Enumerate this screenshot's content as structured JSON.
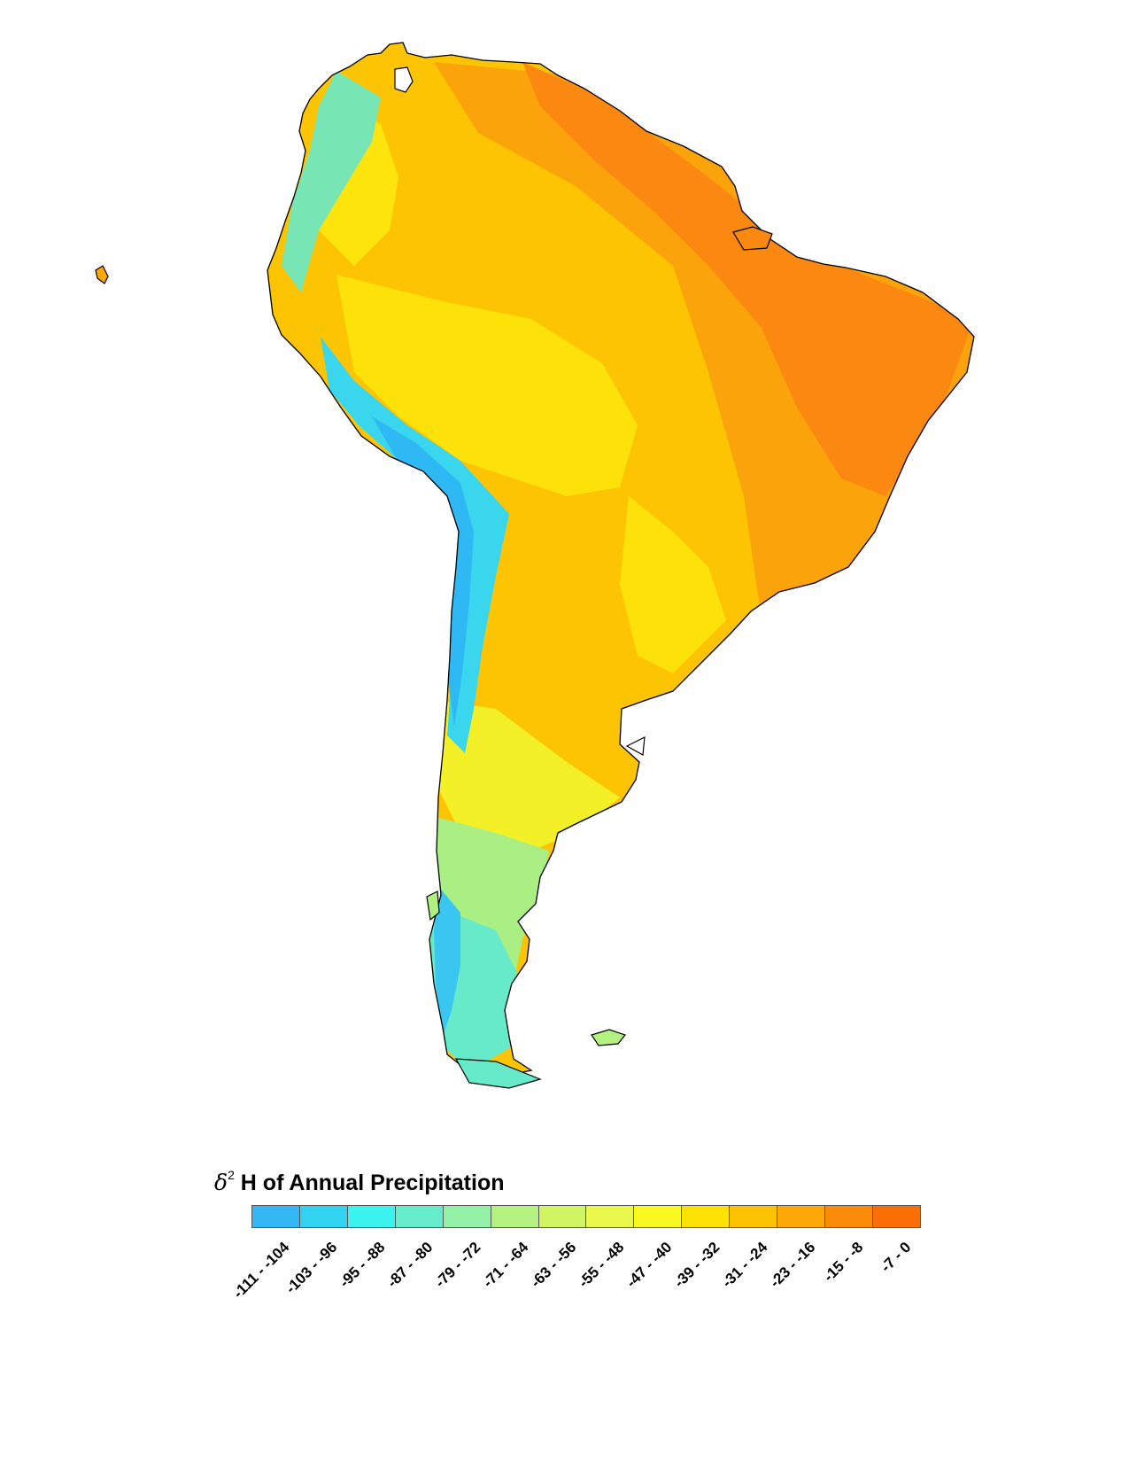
{
  "legend": {
    "title_symbol": "δ",
    "title_superscript": "2",
    "title_text": " H of Annual Precipitation",
    "classes": [
      {
        "label": "-111 - -104",
        "color": "#35b6f5"
      },
      {
        "label": "-103 - -96",
        "color": "#31d3f1"
      },
      {
        "label": "-95 - -88",
        "color": "#3af2ee"
      },
      {
        "label": "-87 - -80",
        "color": "#66ecca"
      },
      {
        "label": "-79 - -72",
        "color": "#93f2a8"
      },
      {
        "label": "-71 - -64",
        "color": "#b4f27f"
      },
      {
        "label": "-63 - -56",
        "color": "#d2f564"
      },
      {
        "label": "-55 - -48",
        "color": "#ecf74c"
      },
      {
        "label": "-47 - -40",
        "color": "#fafa22"
      },
      {
        "label": "-39 - -32",
        "color": "#fde204"
      },
      {
        "label": "-31 - -24",
        "color": "#fdc301"
      },
      {
        "label": "-23 - -16",
        "color": "#fda806"
      },
      {
        "label": "-15 - -8",
        "color": "#fb8c0a"
      },
      {
        "label": "-7 - 0",
        "color": "#fb6e06"
      }
    ]
  }
}
